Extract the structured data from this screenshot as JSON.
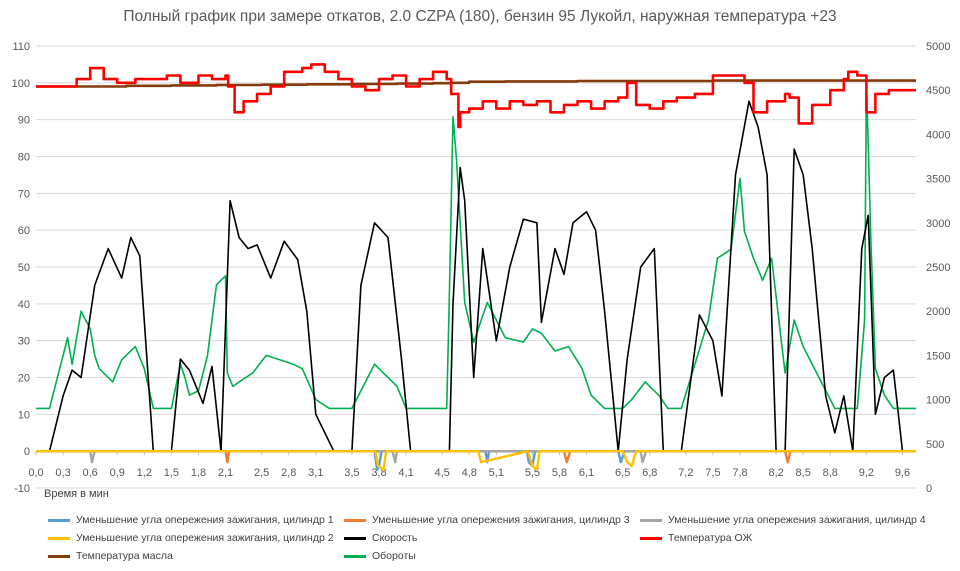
{
  "chart_data": {
    "type": "line",
    "title": "Полный график при замере откатов, 2.0 CZPA (180), бензин 95 Лукойл, наружная температура +23",
    "xlabel": "Время в мин",
    "xlim": [
      0,
      9.75
    ],
    "x_ticks": [
      "0,0",
      "0,3",
      "0,6",
      "0,9",
      "1,2",
      "1,5",
      "1,8",
      "2,1",
      "2,5",
      "2,8",
      "3,1",
      "3,5",
      "3,8",
      "4,1",
      "4,5",
      "4,8",
      "5,1",
      "5,5",
      "5,8",
      "6,1",
      "6,5",
      "6,8",
      "7,2",
      "7,5",
      "7,8",
      "8,2",
      "8,5",
      "8,8",
      "9,2",
      "9,6"
    ],
    "x_tick_values": [
      0,
      0.3,
      0.6,
      0.9,
      1.2,
      1.5,
      1.8,
      2.1,
      2.5,
      2.8,
      3.1,
      3.5,
      3.8,
      4.1,
      4.5,
      4.8,
      5.1,
      5.5,
      5.8,
      6.1,
      6.5,
      6.8,
      7.2,
      7.5,
      7.8,
      8.2,
      8.5,
      8.8,
      9.2,
      9.6
    ],
    "y_left": {
      "lim": [
        -10,
        110
      ],
      "ticks": [
        "-10",
        "0",
        "10",
        "20",
        "30",
        "40",
        "50",
        "60",
        "70",
        "80",
        "90",
        "100",
        "110"
      ]
    },
    "y_right": {
      "lim": [
        0,
        5000
      ],
      "ticks": [
        "0",
        "500",
        "1000",
        "1500",
        "2000",
        "2500",
        "3000",
        "3500",
        "4000",
        "4500",
        "5000"
      ]
    },
    "grid": "horizontal",
    "legend_position": "bottom",
    "series": [
      {
        "name": "Уменьшение угла опережения зажигания, цилиндр 1",
        "color": "#5B9BD5",
        "axis": "left",
        "x": [
          0,
          3.75,
          3.78,
          3.8,
          3.83,
          4.98,
          5.0,
          5.02,
          5.44,
          5.46,
          5.5,
          5.53,
          6.45,
          6.48,
          6.52,
          9.75
        ],
        "y": [
          0,
          0,
          -5,
          -4,
          0,
          0,
          -3,
          0,
          0,
          -3,
          -4,
          0,
          0,
          -3,
          0,
          0
        ]
      },
      {
        "name": "Уменьшение угла опережения зажигания, цилиндр 3",
        "color": "#ED7D31",
        "axis": "left",
        "x": [
          0,
          2.1,
          2.12,
          2.14,
          5.85,
          5.88,
          5.92,
          8.3,
          8.33,
          8.36,
          9.75
        ],
        "y": [
          0,
          0,
          -3,
          0,
          0,
          -3,
          0,
          0,
          -3,
          0,
          0
        ]
      },
      {
        "name": "Уменьшение угла опережения зажигания, цилиндр 4",
        "color": "#A5A5A5",
        "axis": "left",
        "x": [
          0,
          0.6,
          0.62,
          0.65,
          3.95,
          3.98,
          4.0,
          6.7,
          6.72,
          6.76,
          9.75
        ],
        "y": [
          0,
          0,
          -3,
          0,
          0,
          -3,
          0,
          0,
          -3,
          0,
          0
        ]
      },
      {
        "name": "Уменьшение угла опережения зажигания, цилиндр 2",
        "color": "#FFC000",
        "axis": "left",
        "x": [
          0,
          3.76,
          3.79,
          3.85,
          3.88,
          4.9,
          4.93,
          5.45,
          5.5,
          5.55,
          5.58,
          6.5,
          6.55,
          6.6,
          6.65,
          9.75
        ],
        "y": [
          0,
          0,
          -4,
          -5,
          0,
          0,
          -3,
          0,
          -4,
          -5,
          0,
          0,
          -3,
          -4,
          0,
          0
        ]
      },
      {
        "name": "Скорость",
        "color": "#000000",
        "axis": "left",
        "x": [
          0,
          0.15,
          0.3,
          0.4,
          0.5,
          0.65,
          0.8,
          0.95,
          1.05,
          1.15,
          1.3,
          1.5,
          1.6,
          1.7,
          1.85,
          1.95,
          2.05,
          2.15,
          2.25,
          2.35,
          2.45,
          2.6,
          2.75,
          2.9,
          3.0,
          3.1,
          3.3,
          3.5,
          3.6,
          3.75,
          3.9,
          4.05,
          4.15,
          4.4,
          4.58,
          4.62,
          4.7,
          4.75,
          4.85,
          4.95,
          5.1,
          5.25,
          5.4,
          5.55,
          5.6,
          5.75,
          5.85,
          5.95,
          6.1,
          6.2,
          6.3,
          6.45,
          6.55,
          6.7,
          6.85,
          6.95,
          7.15,
          7.35,
          7.5,
          7.6,
          7.75,
          7.9,
          8.0,
          8.1,
          8.2,
          8.3,
          8.4,
          8.5,
          8.6,
          8.75,
          8.85,
          8.95,
          9.05,
          9.15,
          9.22,
          9.3,
          9.4,
          9.5,
          9.6,
          9.75
        ],
        "y": [
          0,
          0,
          15,
          22,
          20,
          45,
          55,
          47,
          58,
          53,
          0,
          0,
          25,
          22,
          13,
          23,
          0,
          68,
          58,
          55,
          56,
          47,
          57,
          52,
          38,
          10,
          0,
          0,
          45,
          62,
          58,
          25,
          0,
          0,
          0,
          40,
          77,
          68,
          20,
          55,
          30,
          50,
          63,
          62,
          35,
          55,
          48,
          62,
          65,
          60,
          38,
          0,
          25,
          50,
          55,
          0,
          0,
          37,
          30,
          15,
          75,
          95,
          88,
          75,
          0,
          0,
          82,
          75,
          55,
          15,
          5,
          15,
          0,
          55,
          64,
          10,
          20,
          22,
          0,
          0
        ]
      },
      {
        "name": "Температура ОЖ",
        "color": "#FF0000",
        "axis": "left",
        "x": [
          0,
          0.3,
          0.45,
          0.6,
          0.75,
          0.9,
          1.1,
          1.3,
          1.45,
          1.6,
          1.8,
          1.95,
          2.1,
          2.13,
          2.2,
          2.3,
          2.45,
          2.6,
          2.75,
          2.95,
          3.05,
          3.2,
          3.35,
          3.5,
          3.65,
          3.8,
          3.95,
          4.1,
          4.25,
          4.4,
          4.55,
          4.6,
          4.68,
          4.7,
          4.8,
          4.95,
          5.1,
          5.25,
          5.4,
          5.55,
          5.7,
          5.85,
          6.0,
          6.15,
          6.3,
          6.45,
          6.55,
          6.65,
          6.8,
          6.95,
          7.1,
          7.3,
          7.5,
          7.7,
          7.85,
          7.95,
          8.1,
          8.3,
          8.35,
          8.45,
          8.6,
          8.8,
          8.95,
          9.0,
          9.1,
          9.2,
          9.3,
          9.45,
          9.6,
          9.75
        ],
        "y": [
          99,
          99,
          101,
          104,
          101,
          100,
          101,
          101,
          102,
          100,
          102,
          101,
          102,
          99,
          92,
          95,
          97,
          99,
          103,
          104,
          105,
          103,
          101,
          99,
          98,
          101,
          102,
          99,
          101,
          103,
          101,
          97,
          88,
          92,
          93,
          95,
          93,
          95,
          94,
          95,
          92,
          94,
          95,
          93,
          95,
          96,
          100,
          94,
          93,
          95,
          96,
          97,
          102,
          102,
          100,
          92,
          95,
          97,
          96,
          89,
          94,
          98,
          101,
          103,
          102,
          92,
          97,
          98,
          98,
          98
        ]
      },
      {
        "name": "Температура масла",
        "color": "#843C0C",
        "axis": "left",
        "x": [
          0,
          0.5,
          1.0,
          1.5,
          2.0,
          2.5,
          3.0,
          3.5,
          4.0,
          4.4,
          4.6,
          4.8,
          5.2,
          5.6,
          6.0,
          6.5,
          7.0,
          7.5,
          8.0,
          8.5,
          9.0,
          9.5,
          9.75
        ],
        "y": [
          99,
          99,
          99.2,
          99.3,
          99.4,
          99.5,
          99.6,
          99.7,
          99.8,
          99.9,
          100,
          100.3,
          100.4,
          100.4,
          100.5,
          100.5,
          100.5,
          100.6,
          100.6,
          100.6,
          100.6,
          100.6,
          100.6
        ]
      },
      {
        "name": "Обороты",
        "color": "#00B050",
        "axis": "right",
        "x": [
          0,
          0.15,
          0.3,
          0.35,
          0.4,
          0.5,
          0.6,
          0.65,
          0.7,
          0.85,
          0.95,
          1.1,
          1.2,
          1.3,
          1.5,
          1.6,
          1.65,
          1.7,
          1.8,
          1.9,
          2.0,
          2.1,
          2.12,
          2.18,
          2.25,
          2.4,
          2.55,
          2.7,
          2.85,
          2.95,
          3.1,
          3.25,
          3.5,
          3.6,
          3.75,
          3.9,
          4.0,
          4.1,
          4.3,
          4.55,
          4.58,
          4.62,
          4.66,
          4.75,
          4.85,
          5.0,
          5.2,
          5.4,
          5.5,
          5.6,
          5.75,
          5.9,
          6.05,
          6.15,
          6.3,
          6.5,
          6.6,
          6.75,
          6.9,
          7.0,
          7.15,
          7.3,
          7.45,
          7.55,
          7.7,
          7.8,
          7.85,
          7.95,
          8.05,
          8.15,
          8.3,
          8.4,
          8.5,
          8.7,
          8.85,
          8.95,
          9.1,
          9.18,
          9.2,
          9.25,
          9.3,
          9.4,
          9.5,
          9.6,
          9.75
        ],
        "y": [
          900,
          900,
          1500,
          1700,
          1400,
          2000,
          1800,
          1500,
          1350,
          1200,
          1450,
          1600,
          1350,
          900,
          900,
          1400,
          1250,
          1050,
          1100,
          1500,
          2300,
          2400,
          1300,
          1150,
          1200,
          1300,
          1500,
          1450,
          1400,
          1350,
          1000,
          900,
          900,
          1100,
          1400,
          1250,
          1150,
          900,
          900,
          900,
          2200,
          4200,
          3700,
          2100,
          1650,
          2100,
          1700,
          1650,
          1800,
          1750,
          1550,
          1600,
          1350,
          1050,
          900,
          900,
          1000,
          1200,
          1050,
          900,
          900,
          1400,
          1900,
          2600,
          2700,
          3500,
          2900,
          2600,
          2350,
          2600,
          1300,
          1900,
          1600,
          1200,
          900,
          900,
          900,
          1900,
          4600,
          2800,
          1350,
          1050,
          900,
          900,
          900
        ]
      }
    ]
  }
}
